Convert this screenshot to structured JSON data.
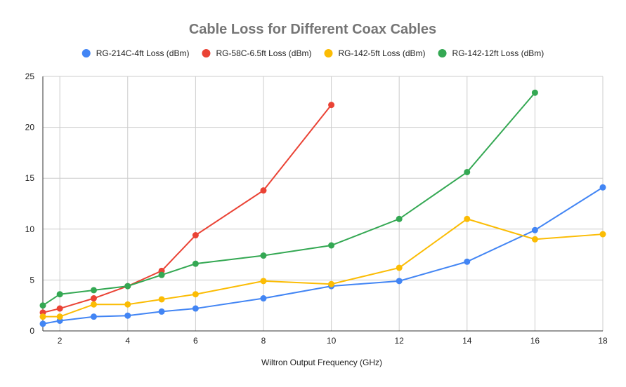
{
  "chart_data": {
    "type": "line",
    "title": "Cable Loss for Different Coax Cables",
    "xlabel": "Wiltron Output Frequency (GHz)",
    "ylabel": "",
    "xlim": [
      1.5,
      18
    ],
    "ylim": [
      0,
      25
    ],
    "x_ticks": [
      2,
      4,
      6,
      8,
      10,
      12,
      14,
      16,
      18
    ],
    "y_ticks": [
      0,
      5,
      10,
      15,
      20,
      25
    ],
    "grid": true,
    "legend_position": "top",
    "series": [
      {
        "name": "RG-214C-4ft Loss (dBm)",
        "color": "#4285f4",
        "points": [
          [
            1.5,
            0.7
          ],
          [
            2,
            1.0
          ],
          [
            3,
            1.4
          ],
          [
            4,
            1.5
          ],
          [
            5,
            1.9
          ],
          [
            6,
            2.2
          ],
          [
            8,
            3.2
          ],
          [
            10,
            4.4
          ],
          [
            12,
            4.9
          ],
          [
            14,
            6.8
          ],
          [
            16,
            9.9
          ],
          [
            18,
            14.1
          ]
        ]
      },
      {
        "name": "RG-58C-6.5ft Loss (dBm)",
        "color": "#ea4335",
        "points": [
          [
            1.5,
            1.8
          ],
          [
            2,
            2.2
          ],
          [
            3,
            3.2
          ],
          [
            4,
            4.4
          ],
          [
            5,
            5.9
          ],
          [
            6,
            9.4
          ],
          [
            8,
            13.8
          ],
          [
            10,
            22.2
          ]
        ]
      },
      {
        "name": "RG-142-5ft Loss (dBm)",
        "color": "#fbbc04",
        "points": [
          [
            1.5,
            1.4
          ],
          [
            2,
            1.4
          ],
          [
            3,
            2.6
          ],
          [
            4,
            2.6
          ],
          [
            5,
            3.1
          ],
          [
            6,
            3.6
          ],
          [
            8,
            4.9
          ],
          [
            10,
            4.6
          ],
          [
            12,
            6.2
          ],
          [
            14,
            11.0
          ],
          [
            16,
            9.0
          ],
          [
            18,
            9.5
          ]
        ]
      },
      {
        "name": "RG-142-12ft Loss (dBm)",
        "color": "#34a853",
        "points": [
          [
            1.5,
            2.5
          ],
          [
            2,
            3.6
          ],
          [
            3,
            4.0
          ],
          [
            4,
            4.4
          ],
          [
            5,
            5.5
          ],
          [
            6,
            6.6
          ],
          [
            8,
            7.4
          ],
          [
            10,
            8.4
          ],
          [
            12,
            11.0
          ],
          [
            14,
            15.6
          ],
          [
            16,
            23.4
          ]
        ]
      }
    ]
  }
}
